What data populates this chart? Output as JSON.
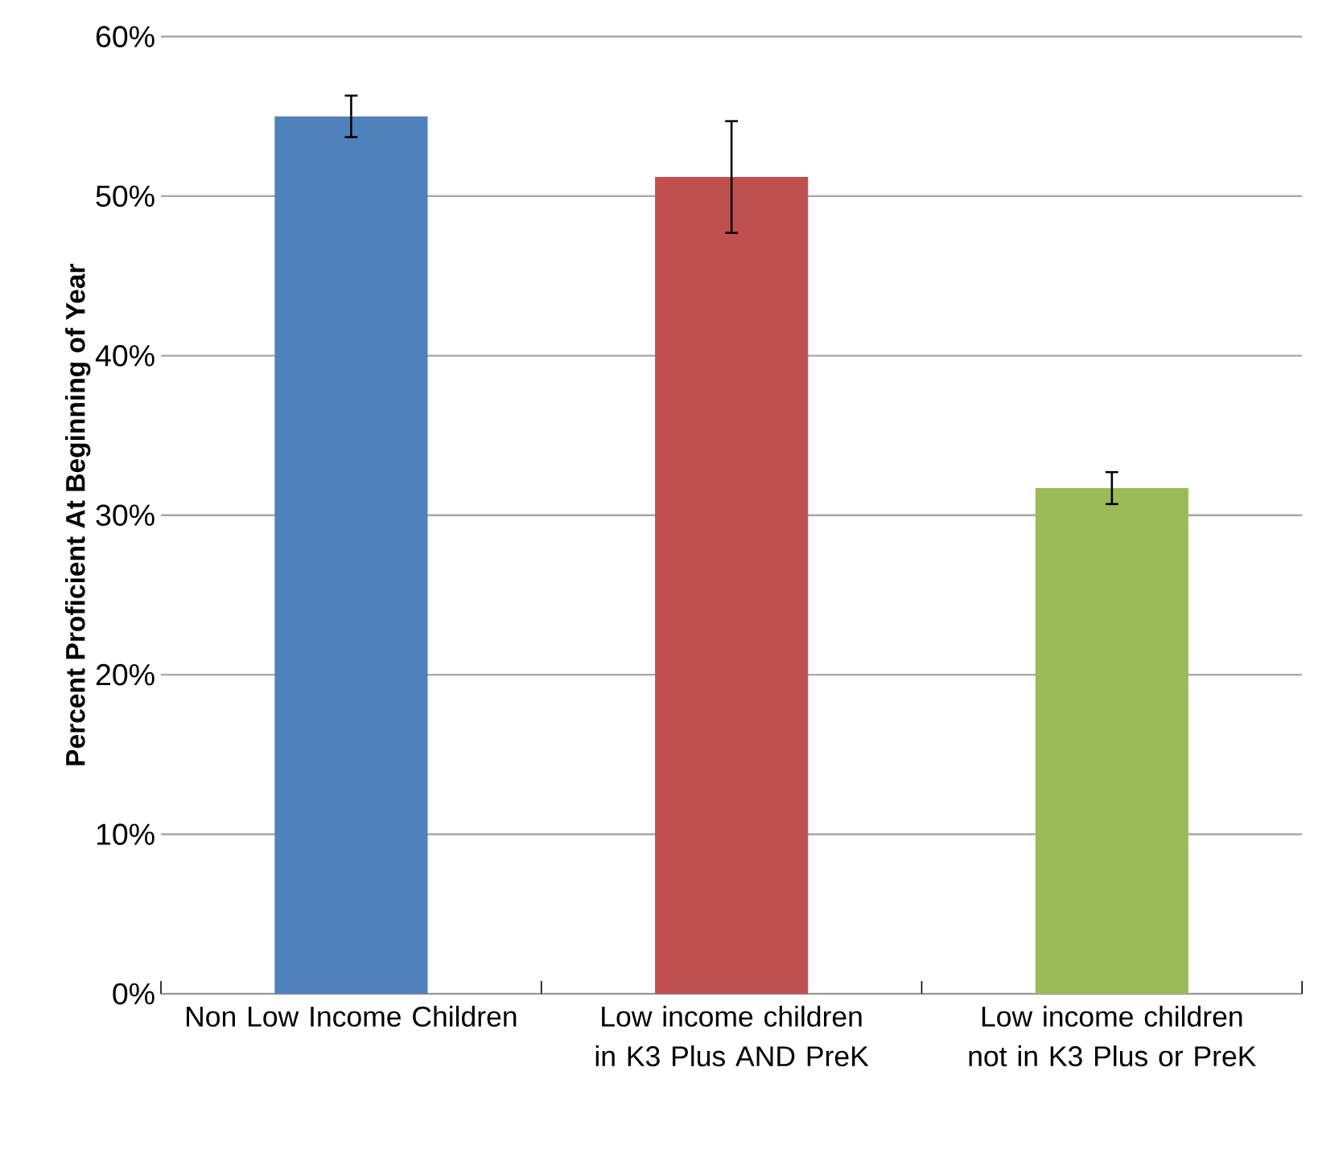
{
  "chart_data": {
    "type": "bar",
    "categories": [
      "Non Low Income Children",
      "Low income children in K3 Plus AND PreK",
      "Low income children not in K3 Plus or PreK"
    ],
    "values": [
      55.0,
      51.2,
      31.7
    ],
    "colors": [
      "#4f81bd",
      "#c0504d",
      "#9bbb59"
    ],
    "errors": [
      1.3,
      3.5,
      1.0
    ],
    "ylabel": "Percent Proficient At Beginning of Year",
    "ylim": [
      0,
      60
    ],
    "yticks": [
      {
        "value": 0,
        "label": "0%"
      },
      {
        "value": 10,
        "label": "10%"
      },
      {
        "value": 20,
        "label": "20%"
      },
      {
        "value": 30,
        "label": "30%"
      },
      {
        "value": 40,
        "label": "40%"
      },
      {
        "value": 50,
        "label": "50%"
      },
      {
        "value": 60,
        "label": "60%"
      }
    ],
    "grid": "y"
  }
}
